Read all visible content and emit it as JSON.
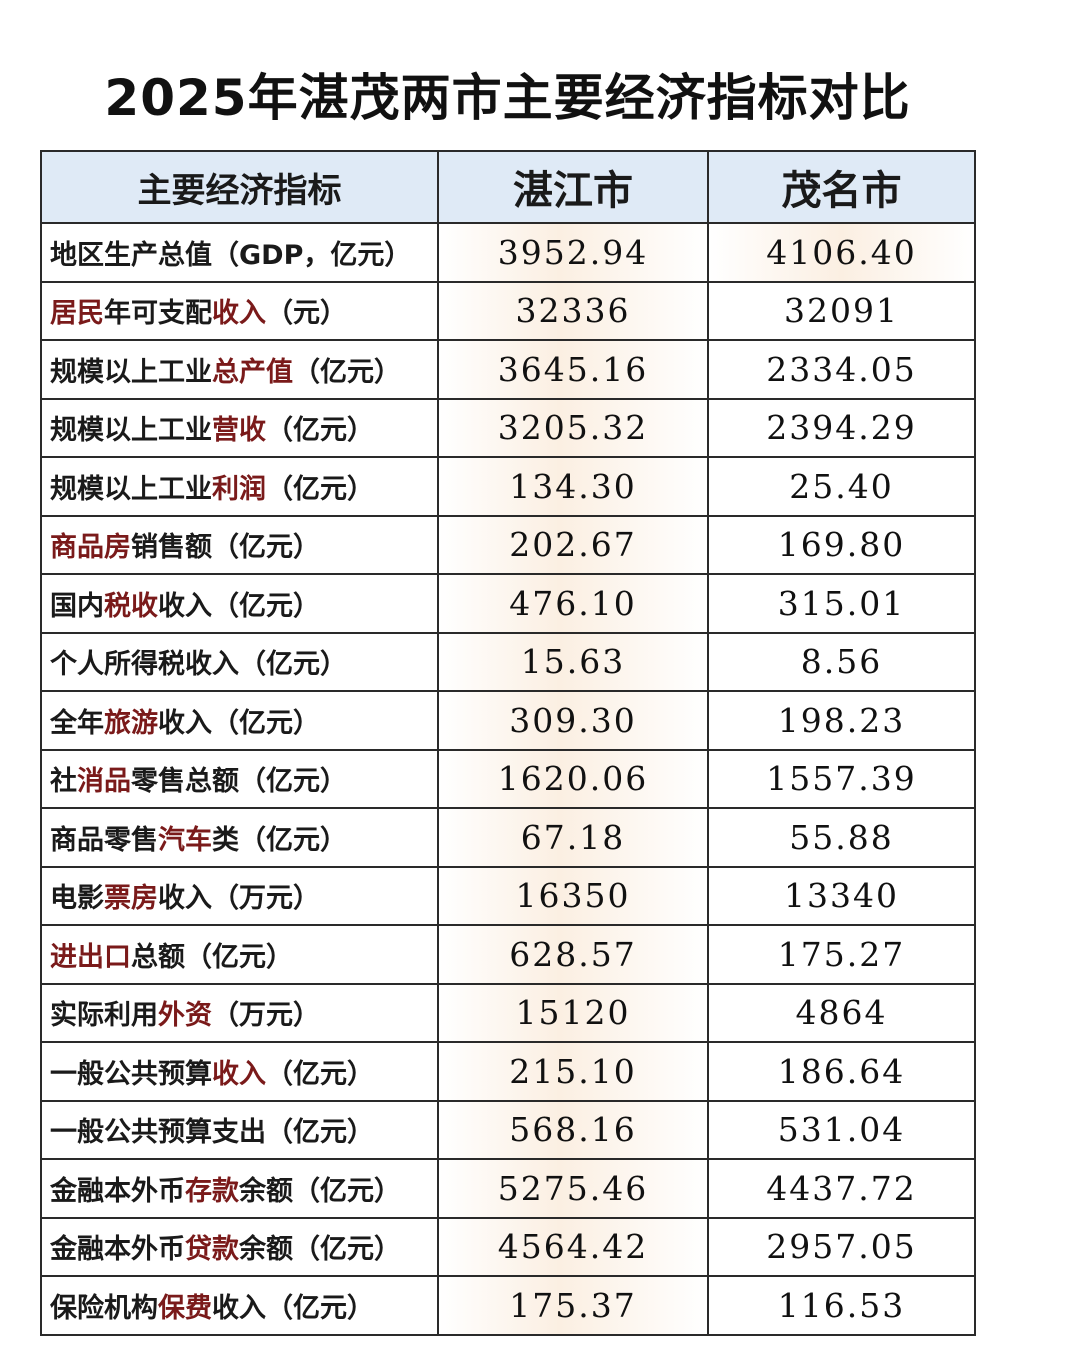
{
  "header": {
    "title": "2025年湛茂两市主要经济指标对比"
  },
  "table": {
    "columns": [
      "主要经济指标",
      "湛江市",
      "茂名市"
    ],
    "highlight_color": "#7a1a1a",
    "rows": [
      {
        "label": [
          "地区生产总值（GDP，亿元）"
        ],
        "values": [
          "3952.94",
          "4106.40"
        ]
      },
      {
        "label": [
          {
            "text": "居民",
            "red": true
          },
          "年可支配",
          {
            "text": "收入",
            "red": true
          },
          "（元）"
        ],
        "values": [
          "32336",
          "32091"
        ]
      },
      {
        "label": [
          "规模以上工业",
          {
            "text": "总产值",
            "red": true
          },
          "（亿元）"
        ],
        "values": [
          "3645.16",
          "2334.05"
        ]
      },
      {
        "label": [
          "规模以上工业",
          {
            "text": "营收",
            "red": true
          },
          "（亿元）"
        ],
        "values": [
          "3205.32",
          "2394.29"
        ]
      },
      {
        "label": [
          "规模以上工业",
          {
            "text": "利润",
            "red": true
          },
          "（亿元）"
        ],
        "values": [
          "134.30",
          "25.40"
        ]
      },
      {
        "label": [
          {
            "text": "商品房",
            "red": true
          },
          "销售额（亿元）"
        ],
        "values": [
          "202.67",
          "169.80"
        ]
      },
      {
        "label": [
          "国内",
          {
            "text": "税收",
            "red": true
          },
          "收入（亿元）"
        ],
        "values": [
          "476.10",
          "315.01"
        ]
      },
      {
        "label": [
          "个人所得税收入（亿元）"
        ],
        "values": [
          "15.63",
          "8.56"
        ]
      },
      {
        "label": [
          "全年",
          {
            "text": "旅游",
            "red": true
          },
          "收入（亿元）"
        ],
        "values": [
          "309.30",
          "198.23"
        ]
      },
      {
        "label": [
          "社",
          {
            "text": "消品",
            "red": true
          },
          "零售总额（亿元）"
        ],
        "values": [
          "1620.06",
          "1557.39"
        ]
      },
      {
        "label": [
          "商品零售",
          {
            "text": "汽车",
            "red": true
          },
          "类（亿元）"
        ],
        "values": [
          "67.18",
          "55.88"
        ]
      },
      {
        "label": [
          "电影",
          {
            "text": "票房",
            "red": true
          },
          "收入（万元）"
        ],
        "values": [
          "16350",
          "13340"
        ]
      },
      {
        "label": [
          {
            "text": "进出口",
            "red": true
          },
          "总额（亿元）"
        ],
        "values": [
          "628.57",
          "175.27"
        ]
      },
      {
        "label": [
          "实际利用",
          {
            "text": "外资",
            "red": true
          },
          "（万元）"
        ],
        "values": [
          "15120",
          "4864"
        ]
      },
      {
        "label": [
          "一般公共预算",
          {
            "text": "收入",
            "red": true
          },
          "（亿元）"
        ],
        "values": [
          "215.10",
          "186.64"
        ]
      },
      {
        "label": [
          "一般公共预算支出（亿元）"
        ],
        "values": [
          "568.16",
          "531.04"
        ]
      },
      {
        "label": [
          "金融本外币",
          {
            "text": "存款",
            "red": true
          },
          "余额（亿元）"
        ],
        "values": [
          "5275.46",
          "4437.72"
        ]
      },
      {
        "label": [
          "金融本外币",
          {
            "text": "贷款",
            "red": true
          },
          "余额（亿元）"
        ],
        "values": [
          "4564.42",
          "2957.05"
        ]
      },
      {
        "label": [
          "保险机构",
          {
            "text": "保费",
            "red": true
          },
          "收入（亿元）"
        ],
        "values": [
          "175.37",
          "116.53"
        ]
      }
    ]
  }
}
